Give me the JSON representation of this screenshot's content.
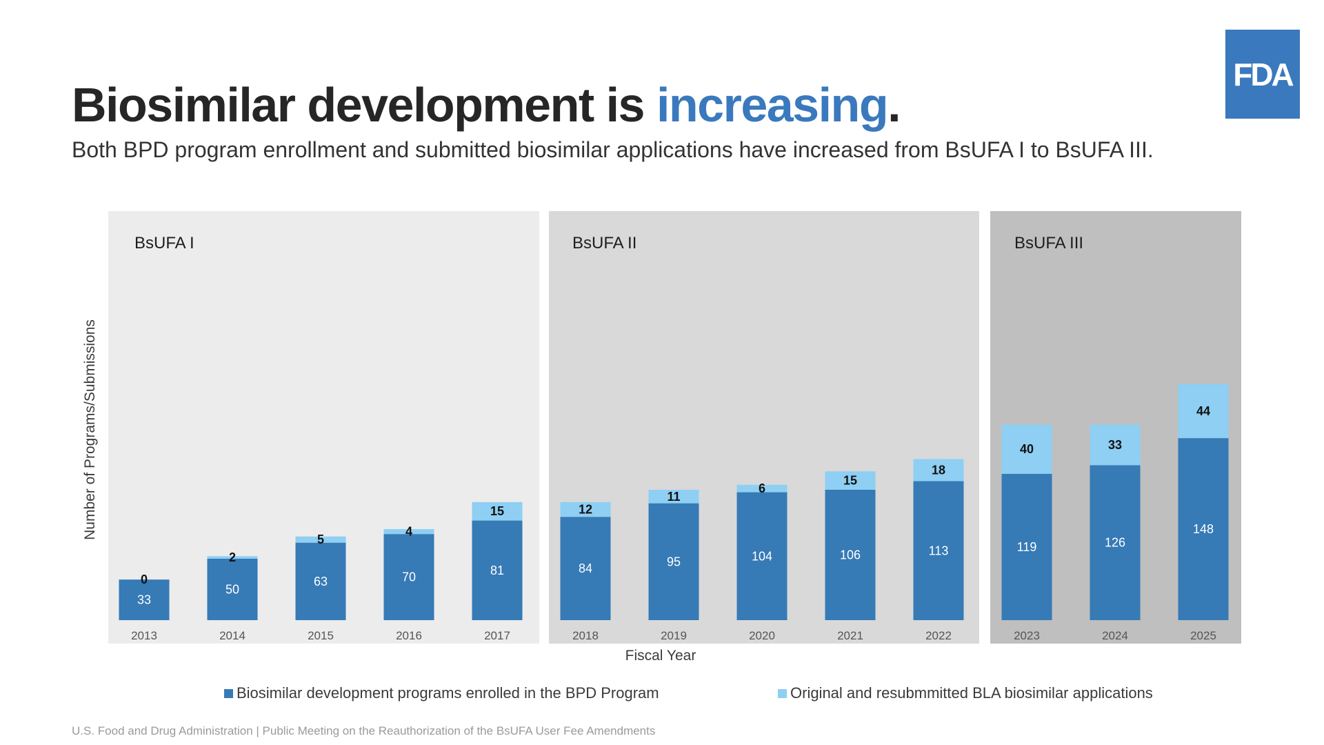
{
  "header": {
    "title_main": "Biosimilar development is ",
    "title_accent": "increasing",
    "title_end": ".",
    "subtitle": "Both BPD program enrollment and submitted biosimilar applications have increased from BsUFA I to BsUFA III.",
    "logo_text": "FDA"
  },
  "colors": {
    "accent": "#3a79bd",
    "logo_bg": "#3a79bd",
    "series_enrolled": "#367ab6",
    "series_applications": "#8ecff3",
    "period_1_bg": "#ececec",
    "period_2_bg": "#d9d9d9",
    "period_3_bg": "#bfbfbf"
  },
  "chart_data": {
    "type": "bar",
    "stacked": true,
    "categories": [
      "2013",
      "2014",
      "2015",
      "2016",
      "2017",
      "2018",
      "2019",
      "2020",
      "2021",
      "2022",
      "2023",
      "2024",
      "2025"
    ],
    "series": [
      {
        "name": "Biosimilar development programs enrolled in the BPD Program",
        "values": [
          33,
          50,
          63,
          70,
          81,
          84,
          95,
          104,
          106,
          113,
          119,
          126,
          148
        ]
      },
      {
        "name": "Original and resubmmitted BLA biosimilar applications",
        "values": [
          0,
          2,
          5,
          4,
          15,
          12,
          11,
          6,
          15,
          18,
          40,
          33,
          44
        ]
      }
    ],
    "periods": [
      {
        "label": "BsUFA I",
        "from": "2013",
        "to": "2017"
      },
      {
        "label": "BsUFA II",
        "from": "2018",
        "to": "2022"
      },
      {
        "label": "BsUFA III",
        "from": "2023",
        "to": "2025"
      }
    ],
    "xlabel": "Fiscal Year",
    "ylabel": "Number of Programs/Submissions",
    "ylim": [
      0,
      200
    ],
    "grid": false,
    "legend_position": "bottom"
  },
  "footer": {
    "text": "U.S. Food and Drug Administration  |  Public Meeting on the Reauthorization of the BsUFA User Fee Amendments"
  }
}
